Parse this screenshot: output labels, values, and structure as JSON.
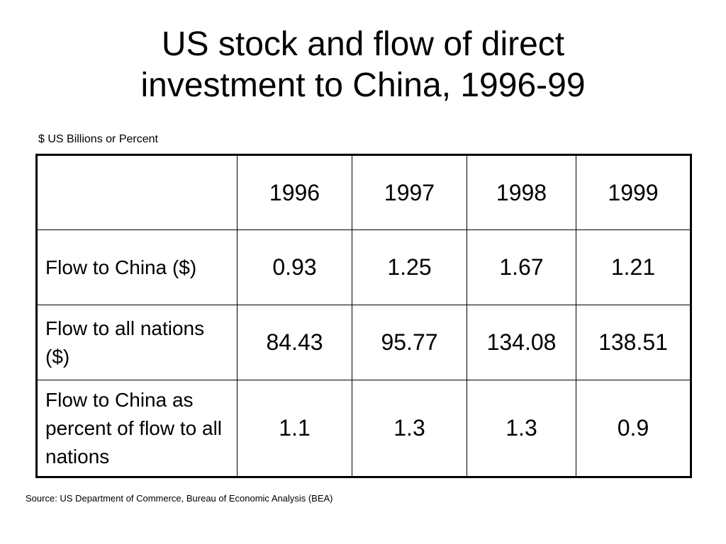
{
  "slide": {
    "title_line1": "US stock and flow of direct",
    "title_line2": "investment to China, 1996-99",
    "units_note": "$ US Billions or Percent",
    "source": "Source: US Department of Commerce, Bureau of Economic Analysis (BEA)"
  },
  "table": {
    "corner": "",
    "years": [
      "1996",
      "1997",
      "1998",
      "1999"
    ],
    "rows": [
      {
        "label": "Flow to China ($)",
        "values": [
          "0.93",
          "1.25",
          "1.67",
          "1.21"
        ]
      },
      {
        "label": "Flow to all nations ($)",
        "values": [
          "84.43",
          "95.77",
          "134.08",
          "138.51"
        ]
      },
      {
        "label": "Flow to China as percent of flow to all nations",
        "values": [
          "1.1",
          "1.3",
          "1.3",
          "0.9"
        ]
      }
    ]
  }
}
